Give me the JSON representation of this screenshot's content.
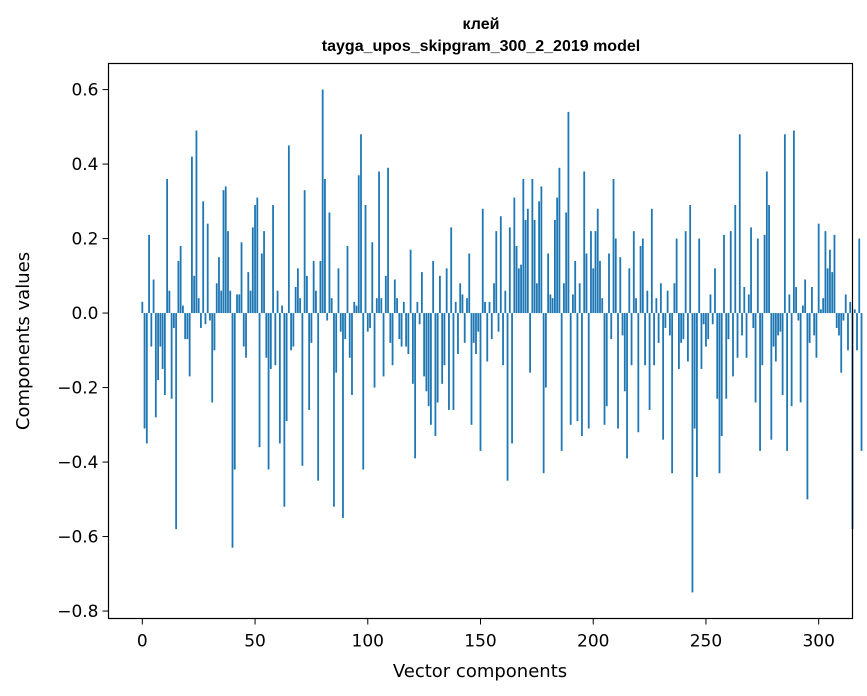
{
  "chart_data": {
    "type": "bar",
    "title": "клей",
    "subtitle": "tayga_upos_skipgram_300_2_2019 model",
    "xlabel": "Vector components",
    "ylabel": "Components values",
    "xlim": [
      -15,
      315
    ],
    "ylim": [
      -0.82,
      0.67
    ],
    "xticks": [
      0,
      50,
      100,
      150,
      200,
      250,
      300
    ],
    "yticks": [
      -0.8,
      -0.6,
      -0.4,
      -0.2,
      0.0,
      0.2,
      0.4,
      0.6
    ],
    "ytick_labels": [
      "−0.8",
      "−0.6",
      "−0.4",
      "−0.2",
      "0.0",
      "0.2",
      "0.4",
      "0.6"
    ],
    "xtick_labels": [
      "0",
      "50",
      "100",
      "150",
      "200",
      "250",
      "300"
    ],
    "bar_color": "#1f77b4",
    "grid": false,
    "values": [
      0.03,
      -0.31,
      -0.35,
      0.21,
      -0.09,
      0.09,
      -0.28,
      -0.18,
      -0.09,
      -0.15,
      -0.22,
      0.36,
      0.06,
      -0.23,
      -0.04,
      -0.58,
      0.14,
      0.18,
      0.02,
      -0.07,
      -0.07,
      -0.17,
      0.42,
      0.1,
      0.49,
      0.04,
      -0.04,
      0.3,
      -0.03,
      0.24,
      -0.02,
      -0.24,
      -0.1,
      0.08,
      0.15,
      0.06,
      0.33,
      0.34,
      0.22,
      0.06,
      -0.63,
      -0.42,
      0.05,
      0.05,
      0.19,
      -0.09,
      -0.12,
      0.11,
      0.06,
      0.23,
      0.29,
      0.31,
      -0.36,
      0.16,
      0.22,
      -0.12,
      -0.42,
      -0.15,
      0.29,
      -0.14,
      0.06,
      -0.35,
      0.02,
      -0.52,
      -0.29,
      0.45,
      -0.1,
      -0.09,
      0.07,
      0.12,
      0.04,
      -0.41,
      0.33,
      0.1,
      -0.26,
      -0.08,
      0.14,
      0.06,
      -0.45,
      0.14,
      0.6,
      0.36,
      -0.02,
      0.27,
      0.04,
      -0.52,
      -0.16,
      0.12,
      -0.05,
      -0.55,
      -0.07,
      0.18,
      -0.12,
      -0.22,
      0.03,
      0.02,
      0.37,
      0.48,
      -0.42,
      0.29,
      -0.05,
      -0.04,
      0.19,
      -0.2,
      0.04,
      0.38,
      0.04,
      -0.17,
      0.1,
      0.39,
      -0.08,
      -0.14,
      0.09,
      0.04,
      -0.07,
      -0.09,
      0.03,
      -0.09,
      -0.11,
      0.17,
      -0.19,
      -0.39,
      0.03,
      -0.03,
      0.11,
      -0.17,
      -0.21,
      -0.25,
      -0.3,
      0.14,
      -0.33,
      -0.24,
      0.1,
      -0.19,
      -0.14,
      0.12,
      -0.26,
      0.23,
      -0.26,
      0.03,
      -0.11,
      0.08,
      0.05,
      -0.08,
      0.04,
      0.16,
      -0.3,
      -0.08,
      -0.11,
      -0.05,
      -0.37,
      0.28,
      0.03,
      -0.13,
      0.03,
      -0.07,
      0.08,
      0.22,
      -0.05,
      0.26,
      -0.14,
      0.06,
      -0.45,
      0.23,
      -0.35,
      0.31,
      0.18,
      0.12,
      0.13,
      0.36,
      0.25,
      0.28,
      -0.16,
      0.36,
      0.25,
      0.08,
      0.3,
      0.34,
      -0.43,
      -0.2,
      0.16,
      0.05,
      0.04,
      0.25,
      0.31,
      0.39,
      -0.37,
      0.08,
      0.27,
      0.54,
      -0.3,
      0.05,
      0.14,
      -0.29,
      0.08,
      -0.33,
      0.38,
      0.16,
      -0.31,
      0.22,
      0.12,
      0.22,
      0.28,
      0.14,
      0.04,
      -0.3,
      -0.25,
      0.16,
      -0.07,
      0.36,
      0.2,
      -0.31,
      0.15,
      -0.06,
      -0.21,
      -0.39,
      0.12,
      -0.14,
      0.22,
      0.04,
      -0.32,
      0.18,
      0.2,
      -0.14,
      0.06,
      -0.26,
      0.28,
      -0.14,
      0.04,
      -0.08,
      0.08,
      -0.34,
      -0.04,
      0.06,
      -0.06,
      -0.43,
      0.08,
      0.2,
      -0.15,
      -0.08,
      -0.07,
      0.22,
      -0.13,
      0.29,
      -0.75,
      -0.31,
      -0.44,
      0.2,
      -0.15,
      -0.03,
      -0.09,
      -0.07,
      0.05,
      -0.03,
      0.12,
      -0.23,
      -0.43,
      -0.33,
      0.21,
      -0.23,
      -0.07,
      0.22,
      -0.17,
      0.29,
      -0.12,
      0.48,
      -0.06,
      0.07,
      -0.12,
      0.05,
      0.23,
      -0.04,
      -0.24,
      0.2,
      -0.37,
      -0.14,
      0.21,
      0.38,
      0.29,
      -0.34,
      -0.09,
      -0.13,
      -0.06,
      -0.05,
      -0.22,
      0.48,
      -0.37,
      0.05,
      -0.25,
      0.49,
      0.07,
      -0.02,
      -0.24,
      0.02,
      0.09,
      -0.5,
      -0.08,
      0.07,
      -0.06,
      -0.12,
      0.24,
      0.01,
      0.04,
      0.22,
      0.12,
      0.17,
      0.11,
      0.21,
      -0.04,
      -0.06,
      -0.16,
      -0.02,
      0.05,
      -0.1,
      0.03,
      -0.58,
      0.01,
      -0.1,
      0.2,
      -0.37
    ]
  }
}
